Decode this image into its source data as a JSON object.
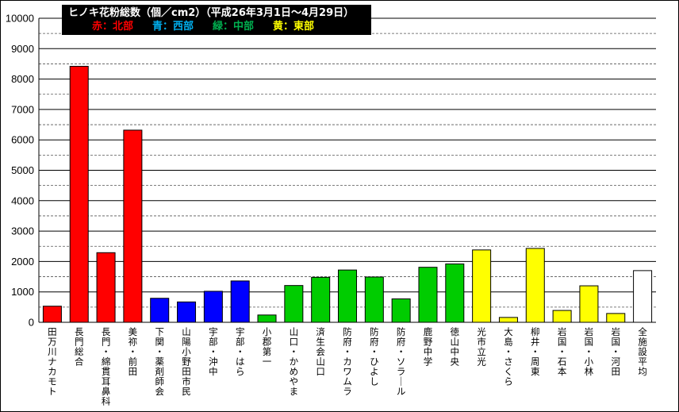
{
  "chart_data": {
    "type": "bar",
    "title": "ヒノキ花粉総数（個／cm2）（平成26年3月1日～4月29日）",
    "legend": [
      {
        "label": "赤：北部",
        "color": "#ff0000"
      },
      {
        "label": "青：西部",
        "color": "#00b0f0"
      },
      {
        "label": "緑：中部",
        "color": "#00b050"
      },
      {
        "label": "黄：東部",
        "color": "#ffff00"
      }
    ],
    "ylim": [
      0,
      10000
    ],
    "yticks": [
      "0",
      "1000",
      "2000",
      "3000",
      "4000",
      "5000",
      "6000",
      "7000",
      "8000",
      "9000",
      "10000"
    ],
    "categories": [
      "田万川ナカモト",
      "長門総合",
      "長門・綿貫耳鼻科",
      "美祢・前田",
      "下関・薬剤師会",
      "山陽小野田市民",
      "宇部・沖中",
      "宇部・はら",
      "小郡第一",
      "山口・かめやま",
      "済生会山口",
      "防府・カワムラ",
      "防府・ひよし",
      "防府・ソラール",
      "鹿野中学",
      "徳山中央",
      "光市立光",
      "大島・さくら",
      "柳井・周東",
      "岩国・石本",
      "岩国・小林",
      "岩国・河田",
      "全施設平均"
    ],
    "values": [
      530,
      8420,
      2290,
      6320,
      790,
      670,
      1020,
      1360,
      240,
      1210,
      1480,
      1720,
      1490,
      770,
      1810,
      1920,
      2380,
      160,
      2430,
      390,
      1200,
      290,
      1700
    ],
    "colors": [
      "#ff0000",
      "#ff0000",
      "#ff0000",
      "#ff0000",
      "#0000ff",
      "#0000ff",
      "#0000ff",
      "#0000ff",
      "#00cc00",
      "#00cc00",
      "#00cc00",
      "#00cc00",
      "#00cc00",
      "#00cc00",
      "#00cc00",
      "#00cc00",
      "#ffff00",
      "#ffff00",
      "#ffff00",
      "#ffff00",
      "#ffff00",
      "#ffff00",
      "#ffffff"
    ],
    "grid": true
  }
}
